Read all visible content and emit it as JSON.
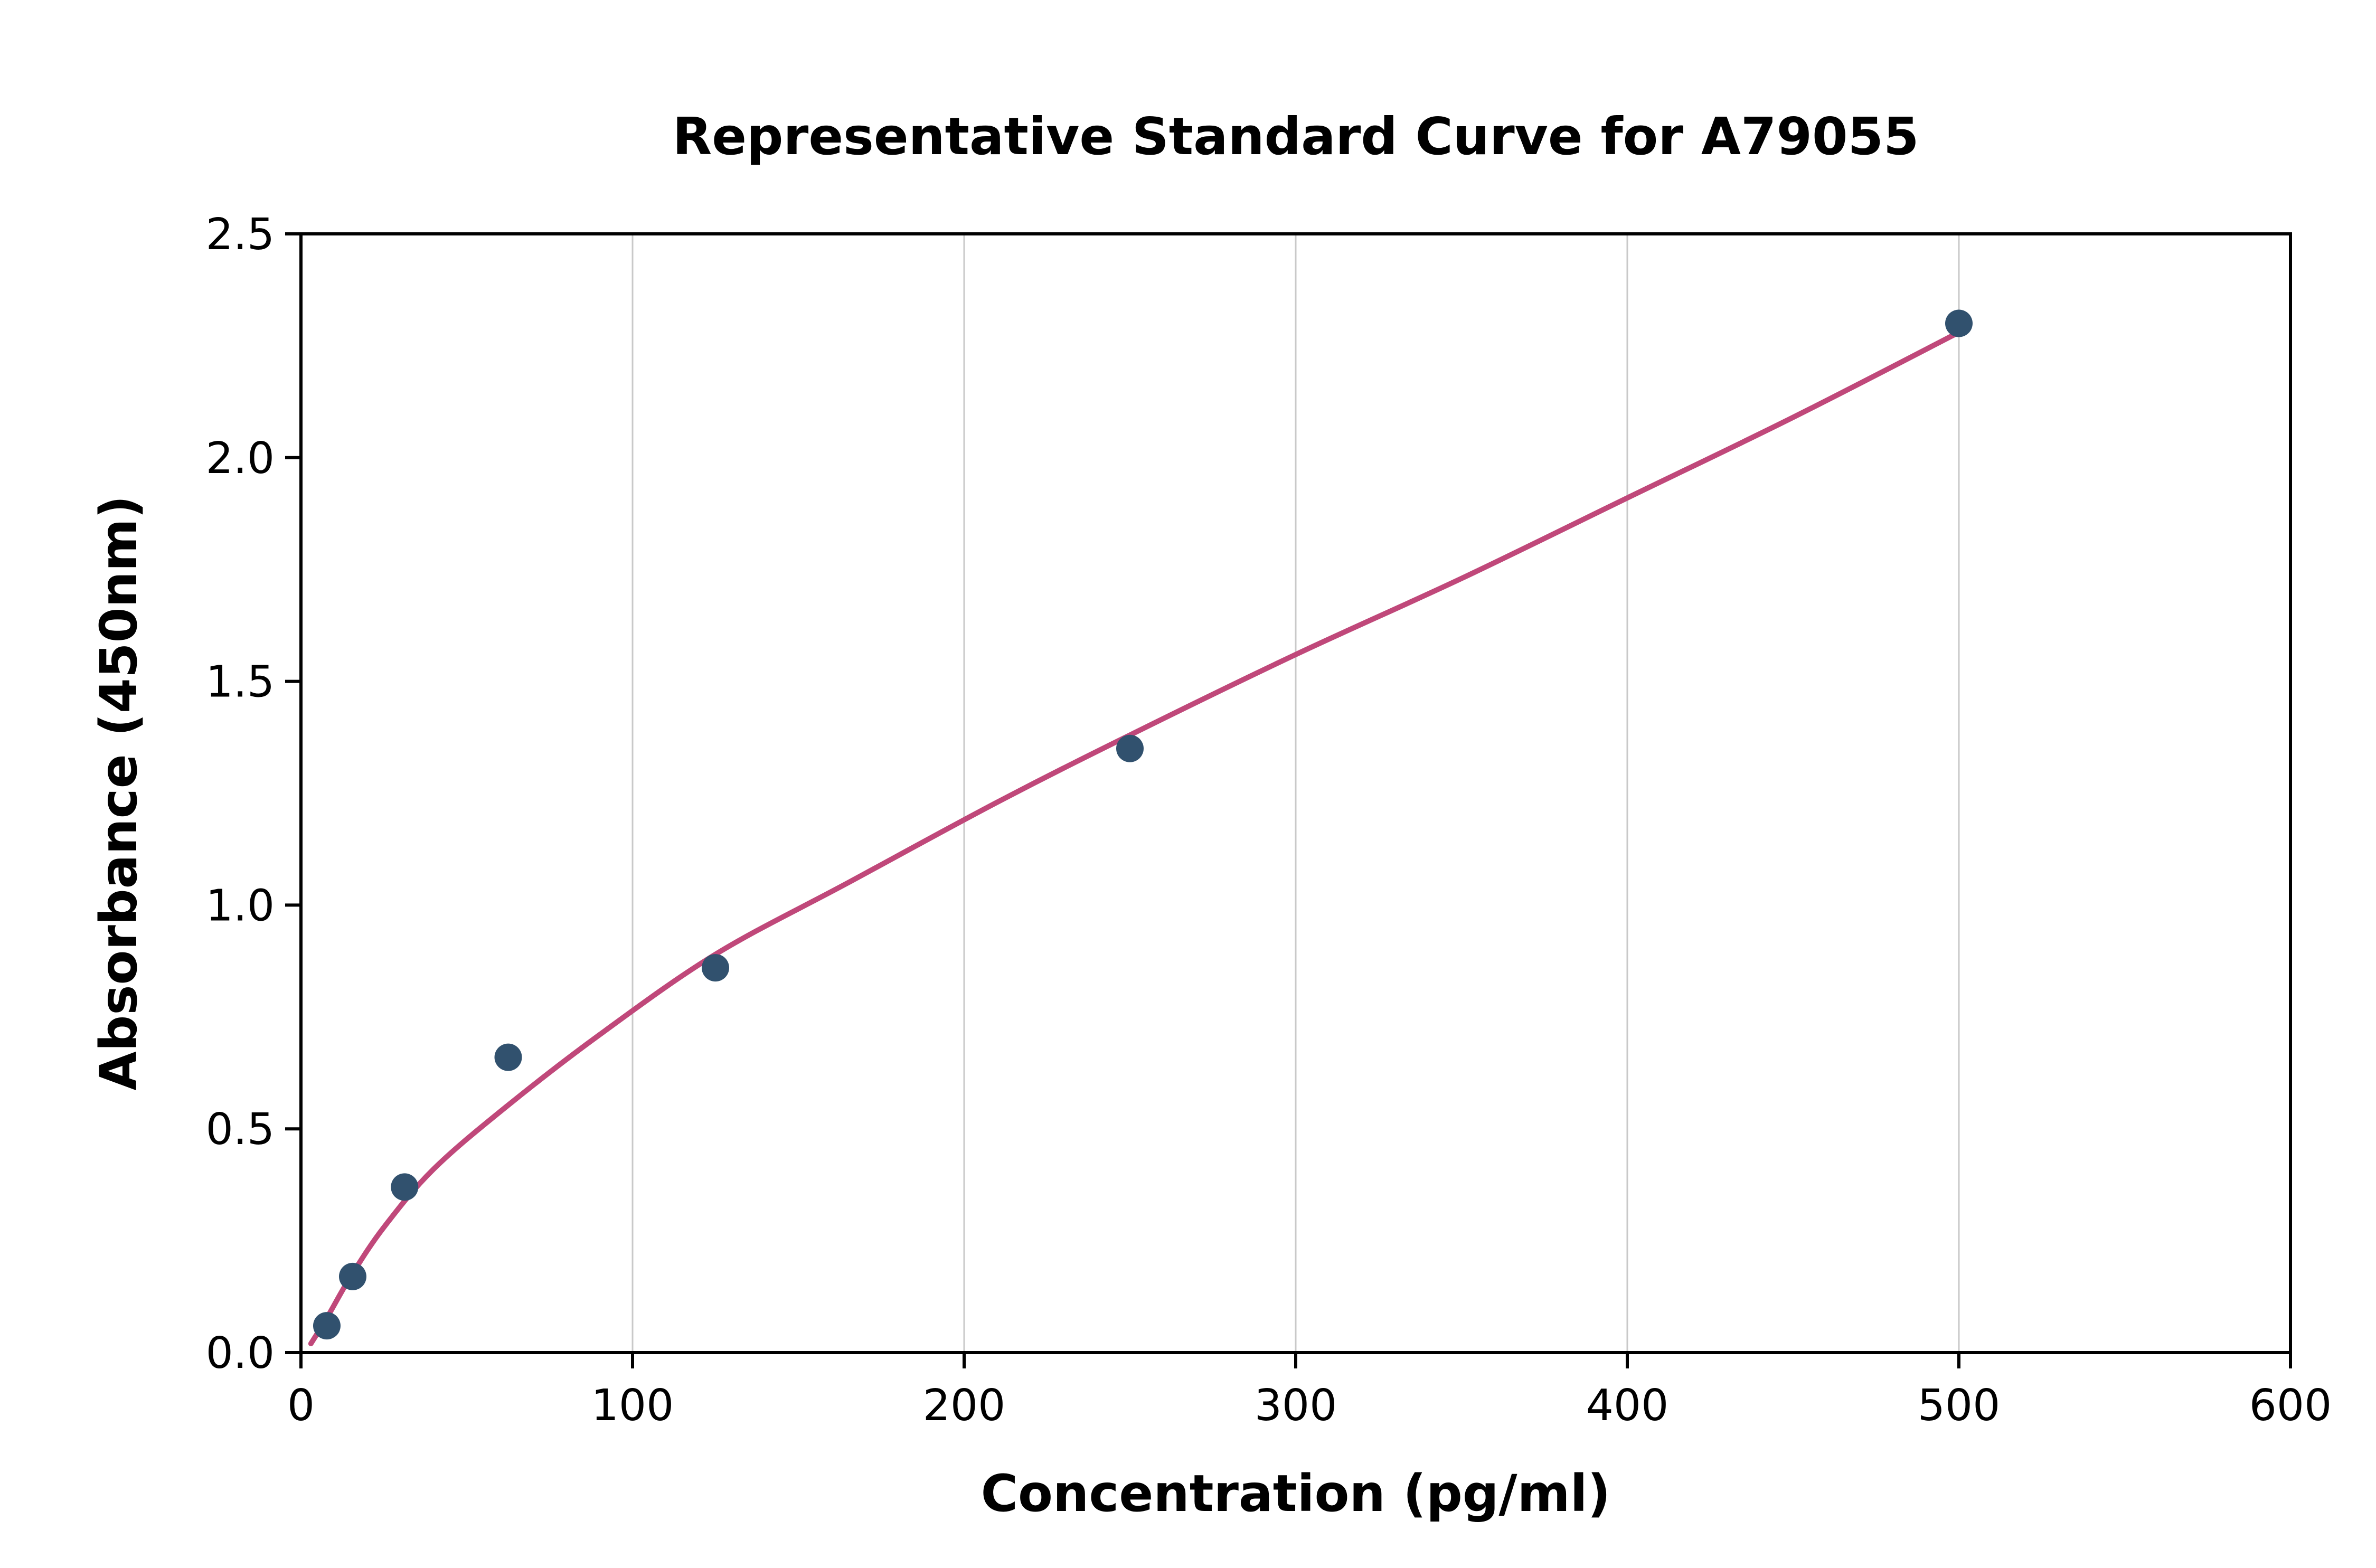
{
  "figure": {
    "background_color": "#ffffff"
  },
  "chart_data": {
    "type": "scatter",
    "title": "Representative Standard Curve for A79055",
    "xlabel": "Concentration (pg/ml)",
    "ylabel": "Absorbance (450nm)",
    "xlim": [
      0,
      600
    ],
    "ylim": [
      0,
      2.5
    ],
    "x_ticks": {
      "values": [
        0,
        100,
        200,
        300,
        400,
        500,
        600
      ],
      "labels": [
        "0",
        "100",
        "200",
        "300",
        "400",
        "500",
        "600"
      ]
    },
    "y_ticks": {
      "values": [
        0,
        0.5,
        1.0,
        1.5,
        2.0,
        2.5
      ],
      "labels": [
        "0.0",
        "0.5",
        "1.0",
        "1.5",
        "2.0",
        "2.5"
      ]
    },
    "grid": "vertical",
    "series": [
      {
        "name": "standard-points",
        "type": "scatter",
        "points": [
          {
            "x": 7.8,
            "y": 0.06
          },
          {
            "x": 15.6,
            "y": 0.17
          },
          {
            "x": 31.25,
            "y": 0.37
          },
          {
            "x": 62.5,
            "y": 0.66
          },
          {
            "x": 125,
            "y": 0.86
          },
          {
            "x": 250,
            "y": 1.35
          },
          {
            "x": 500,
            "y": 2.3
          }
        ]
      },
      {
        "name": "fitted-curve",
        "type": "line",
        "samples": [
          [
            3,
            0.02
          ],
          [
            8,
            0.08
          ],
          [
            15,
            0.17
          ],
          [
            25,
            0.28
          ],
          [
            40,
            0.41
          ],
          [
            62,
            0.55
          ],
          [
            90,
            0.71
          ],
          [
            125,
            0.89
          ],
          [
            165,
            1.05
          ],
          [
            210,
            1.23
          ],
          [
            250,
            1.38
          ],
          [
            300,
            1.56
          ],
          [
            350,
            1.73
          ],
          [
            400,
            1.91
          ],
          [
            450,
            2.09
          ],
          [
            500,
            2.28
          ]
        ]
      }
    ],
    "colors": {
      "marker": "#31516e",
      "curve": "#c0487a",
      "grid": "#c9c9c9",
      "axis": "#000000"
    }
  }
}
